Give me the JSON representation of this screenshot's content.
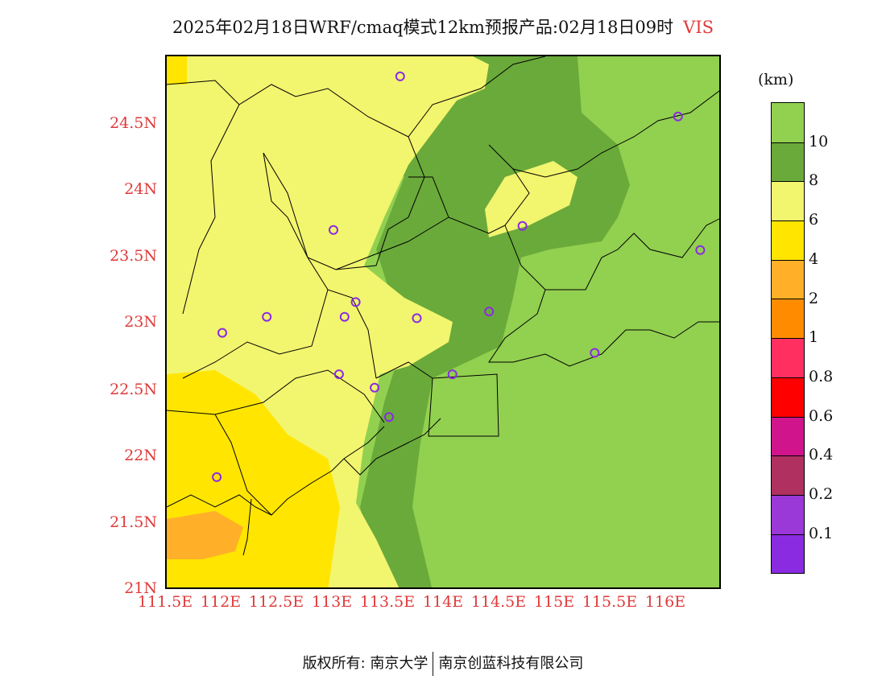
{
  "header": {
    "title": "2025年02月18日WRF/cmaq模式12km预报产品:02月18日09时",
    "variable": "VIS"
  },
  "axes": {
    "y_ticks": [
      "24.5N",
      "24N",
      "23.5N",
      "23N",
      "22.5N",
      "22N",
      "21.5N",
      "21N"
    ],
    "x_ticks": [
      "111.5E",
      "112E",
      "112.5E",
      "113E",
      "113.5E",
      "114E",
      "114.5E",
      "115E",
      "115.5E",
      "116E"
    ]
  },
  "legend": {
    "unit": "(km)",
    "labels": [
      "10",
      "8",
      "6",
      "4",
      "2",
      "1",
      "0.8",
      "0.6",
      "0.4",
      "0.2",
      "0.1"
    ],
    "colors": [
      "#92d050",
      "#6aaa3a",
      "#f2f56e",
      "#ffe500",
      "#ffb028",
      "#ff8c00",
      "#ff3060",
      "#ff0000",
      "#d0148c",
      "#b03060",
      "#9b38d8",
      "#8a2be2"
    ]
  },
  "stations": [
    {
      "lon": 113.6,
      "lat": 24.85
    },
    {
      "lon": 116.1,
      "lat": 24.55
    },
    {
      "lon": 113.0,
      "lat": 23.7
    },
    {
      "lon": 114.7,
      "lat": 23.73
    },
    {
      "lon": 116.3,
      "lat": 23.55
    },
    {
      "lon": 112.4,
      "lat": 23.05
    },
    {
      "lon": 112.0,
      "lat": 22.93
    },
    {
      "lon": 113.1,
      "lat": 23.05
    },
    {
      "lon": 113.2,
      "lat": 23.16
    },
    {
      "lon": 113.75,
      "lat": 23.04
    },
    {
      "lon": 114.4,
      "lat": 23.09
    },
    {
      "lon": 115.35,
      "lat": 22.78
    },
    {
      "lon": 113.05,
      "lat": 22.62
    },
    {
      "lon": 113.37,
      "lat": 22.52
    },
    {
      "lon": 114.07,
      "lat": 22.62
    },
    {
      "lon": 113.5,
      "lat": 22.3
    },
    {
      "lon": 111.95,
      "lat": 21.85
    }
  ],
  "footer": {
    "copyright": "版权所有: 南京大学",
    "company": "南京创蓝科技有限公司"
  }
}
